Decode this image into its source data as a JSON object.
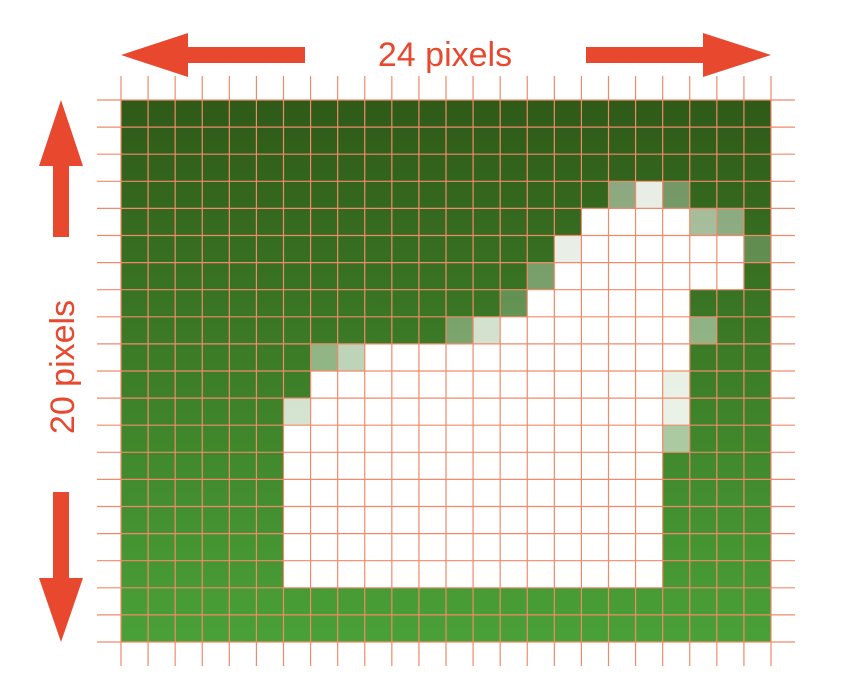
{
  "width_label": "24 pixels",
  "height_label": "20 pixels",
  "grid": {
    "columns": 24,
    "rows": 20,
    "line_color": "#f08a6a",
    "label_color": "#e8482e",
    "background_top": "#2f5a18",
    "background_bottom": "#4aa138",
    "pixel_light_levels": [
      "000000000000000000000000",
      "000000000000000000000000",
      "000000000000000000000000",
      "000000000000000000483000",
      "000000000000000009999540",
      "000000000000000089999992",
      "000000000000000399999990",
      "000000000000002999999000",
      "000000000000379999999400",
      "000000046999999999999000",
      "000000099999999999998000",
      "000000799999999999998000",
      "000000999999999999995000",
      "000000999999999999990000",
      "000000999999999999990000",
      "000000999999999999990000",
      "000000999999999999990000",
      "000000999999999999990000",
      "000000000000000000000000",
      "000000000000000000000000"
    ]
  }
}
